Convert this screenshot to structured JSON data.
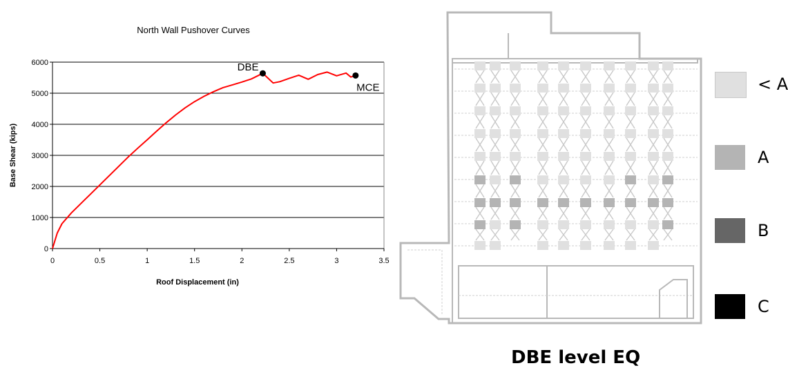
{
  "chart_data": {
    "type": "line",
    "title": "North Wall Pushover Curves",
    "xlabel": "Roof Displacement (in)",
    "ylabel": "Base Shear (kips)",
    "xlim": [
      0,
      3.5
    ],
    "ylim": [
      0,
      6000
    ],
    "x_ticks": [
      "0",
      "0.5",
      "1",
      "1.5",
      "2",
      "2.5",
      "3",
      "3.5"
    ],
    "y_ticks": [
      "0",
      "1000",
      "2000",
      "3000",
      "4000",
      "5000",
      "6000"
    ],
    "grid": "horizontal",
    "series": [
      {
        "color": "#ff0000",
        "points": [
          [
            0,
            0
          ],
          [
            0.05,
            500
          ],
          [
            0.1,
            800
          ],
          [
            0.2,
            1150
          ],
          [
            0.3,
            1450
          ],
          [
            0.4,
            1750
          ],
          [
            0.5,
            2050
          ],
          [
            0.6,
            2350
          ],
          [
            0.7,
            2650
          ],
          [
            0.8,
            2950
          ],
          [
            0.9,
            3230
          ],
          [
            1.0,
            3500
          ],
          [
            1.1,
            3780
          ],
          [
            1.2,
            4050
          ],
          [
            1.3,
            4300
          ],
          [
            1.4,
            4530
          ],
          [
            1.5,
            4730
          ],
          [
            1.6,
            4900
          ],
          [
            1.7,
            5050
          ],
          [
            1.8,
            5180
          ],
          [
            1.9,
            5270
          ],
          [
            2.0,
            5360
          ],
          [
            2.1,
            5460
          ],
          [
            2.22,
            5640
          ],
          [
            2.27,
            5500
          ],
          [
            2.33,
            5330
          ],
          [
            2.4,
            5370
          ],
          [
            2.5,
            5480
          ],
          [
            2.6,
            5580
          ],
          [
            2.7,
            5450
          ],
          [
            2.8,
            5600
          ],
          [
            2.9,
            5680
          ],
          [
            3.0,
            5560
          ],
          [
            3.1,
            5650
          ],
          [
            3.15,
            5520
          ],
          [
            3.2,
            5570
          ]
        ]
      }
    ],
    "markers": [
      {
        "label": "DBE",
        "x": 2.22,
        "y": 5640
      },
      {
        "label": "MCE",
        "x": 3.2,
        "y": 5570
      }
    ]
  },
  "diagram": {
    "title": "DBE level EQ",
    "legend": [
      {
        "label": "< A",
        "color": "#e0e0e0"
      },
      {
        "label": "A",
        "color": "#b4b4b4"
      },
      {
        "label": "B",
        "color": "#666666"
      },
      {
        "label": "C",
        "color": "#000000"
      }
    ]
  }
}
